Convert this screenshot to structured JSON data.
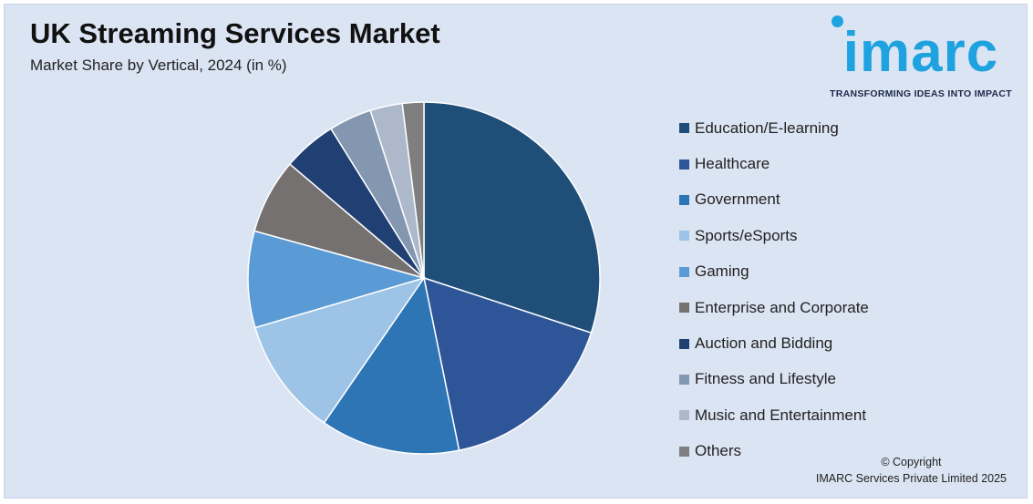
{
  "header": {
    "title": "UK Streaming Services Market",
    "subtitle": "Market Share by Vertical, 2024 (in %)"
  },
  "logo": {
    "wordmark": "imarc",
    "tagline": "TRANSFORMING IDEAS INTO IMPACT",
    "color": "#1fa3e0"
  },
  "chart_data": {
    "type": "pie",
    "title": "UK Streaming Services Market",
    "subtitle": "Market Share by Vertical, 2024 (in %)",
    "legend_position": "right",
    "categories": [
      "Education/E-learning",
      "Healthcare",
      "Government",
      "Sports/eSports",
      "Gaming",
      "Enterprise and Corporate",
      "Auction and Bidding",
      "Fitness and Lifestyle",
      "Music and Entertainment",
      "Others"
    ],
    "values": [
      30.5,
      17,
      13,
      11,
      9,
      7,
      5,
      4,
      3,
      2
    ],
    "colors": [
      "#1f4e79",
      "#2e5597",
      "#2e75b6",
      "#9dc3e6",
      "#5b9bd5",
      "#767171",
      "#203f73",
      "#8497b0",
      "#adb9ca",
      "#7f7f7f"
    ]
  },
  "footer": {
    "copyright_line1": "© Copyright",
    "copyright_line2": "IMARC Services Private Limited 2025"
  }
}
